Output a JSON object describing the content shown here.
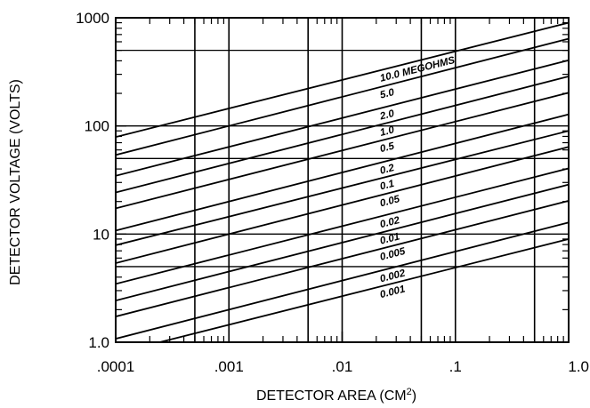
{
  "chart_data": {
    "type": "line",
    "xlabel": "DETECTOR AREA (CM",
    "xlabel_superscript": "2",
    "xlabel_suffix": ")",
    "ylabel": "DETECTOR VOLTAGE (VOLTS)",
    "x_scale": "log",
    "y_scale": "log",
    "xlim": [
      0.0001,
      1.0
    ],
    "ylim": [
      1.0,
      1000
    ],
    "x_ticks": [
      {
        "value": 0.0001,
        "label": ".0001"
      },
      {
        "value": 0.001,
        "label": ".001"
      },
      {
        "value": 0.01,
        "label": ".01"
      },
      {
        "value": 0.1,
        "label": ".1"
      },
      {
        "value": 1.0,
        "label": "1.0"
      }
    ],
    "y_ticks": [
      {
        "value": 1.0,
        "label": "1.0"
      },
      {
        "value": 10,
        "label": "10"
      },
      {
        "value": 100,
        "label": "100"
      },
      {
        "value": 1000,
        "label": "1000"
      }
    ],
    "x_gridlines": [
      0.0005,
      0.001,
      0.005,
      0.01,
      0.05,
      0.1,
      0.5
    ],
    "y_gridlines": [
      5,
      10,
      50,
      100,
      500
    ],
    "series_unit": "MEGOHMS",
    "series": [
      {
        "name": "10.0",
        "x": [
          0.001,
          1.0
        ],
        "y": [
          145,
          900
        ]
      },
      {
        "name": "5.0",
        "x": [
          0.001,
          1.0
        ],
        "y": [
          100,
          640
        ]
      },
      {
        "name": "2.0",
        "x": [
          0.001,
          1.0
        ],
        "y": [
          64,
          405
        ]
      },
      {
        "name": "1.0",
        "x": [
          0.001,
          1.0
        ],
        "y": [
          45,
          287
        ]
      },
      {
        "name": "0.5",
        "x": [
          0.001,
          1.0
        ],
        "y": [
          32,
          203
        ]
      },
      {
        "name": "0.2",
        "x": [
          0.001,
          1.0
        ],
        "y": [
          20,
          128
        ]
      },
      {
        "name": "0.1",
        "x": [
          0.001,
          1.0
        ],
        "y": [
          14.5,
          90
        ]
      },
      {
        "name": "0.05",
        "x": [
          0.001,
          1.0
        ],
        "y": [
          10,
          64
        ]
      },
      {
        "name": "0.02",
        "x": [
          0.001,
          1.0
        ],
        "y": [
          6.4,
          40.5
        ]
      },
      {
        "name": "0.01",
        "x": [
          0.001,
          1.0
        ],
        "y": [
          4.5,
          28.7
        ]
      },
      {
        "name": "0.005",
        "x": [
          0.001,
          1.0
        ],
        "y": [
          3.2,
          20.3
        ]
      },
      {
        "name": "0.002",
        "x": [
          0.001,
          1.0
        ],
        "y": [
          2.0,
          12.8
        ]
      },
      {
        "name": "0.001",
        "x": [
          0.001,
          1.0
        ],
        "y": [
          1.45,
          9.0
        ]
      }
    ],
    "grid": true,
    "legend": "none"
  }
}
